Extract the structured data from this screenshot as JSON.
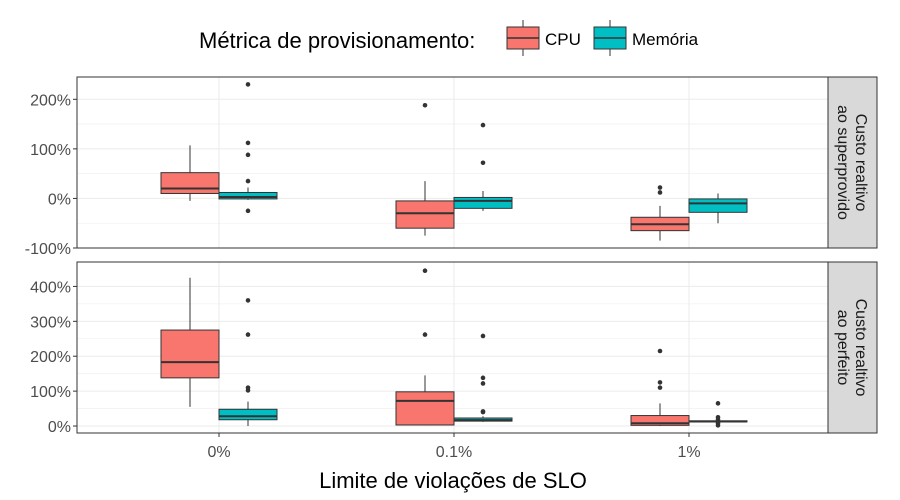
{
  "chart_data": {
    "type": "boxplot",
    "x_title": "Limite de violações de SLO",
    "categories": [
      "0%",
      "0.1%",
      "1%"
    ],
    "legend": {
      "title": "Métrica de provisionamento:",
      "position": "top",
      "entries": [
        {
          "name": "CPU",
          "color": "#F8766D"
        },
        {
          "name": "Memória",
          "color": "#00BFC4"
        }
      ]
    },
    "grid": true,
    "panels": [
      {
        "strip_lines": [
          "Custo realtivo",
          "ao superprovido"
        ],
        "ylim": [
          -100,
          245
        ],
        "yticks": [
          -100,
          0,
          100,
          200
        ],
        "ytick_labels": [
          "-100%",
          "0%",
          "100%",
          "200%"
        ],
        "series": [
          {
            "name": "CPU",
            "boxes": [
              {
                "category": "0%",
                "min": -5,
                "q1": 10,
                "median": 20,
                "q3": 52,
                "max": 107,
                "outliers": []
              },
              {
                "category": "0.1%",
                "min": -75,
                "q1": -60,
                "median": -30,
                "q3": -5,
                "max": 35,
                "outliers": [
                  188
                ]
              },
              {
                "category": "1%",
                "min": -85,
                "q1": -65,
                "median": -52,
                "q3": -38,
                "max": -15,
                "outliers": [
                  12,
                  22
                ]
              }
            ]
          },
          {
            "name": "Memória",
            "boxes": [
              {
                "category": "0%",
                "min": -3,
                "q1": -1,
                "median": 3,
                "q3": 12,
                "max": 22,
                "outliers": [
                  -25,
                  35,
                  88,
                  112,
                  230
                ]
              },
              {
                "category": "0.1%",
                "min": -25,
                "q1": -20,
                "median": -5,
                "q3": 2,
                "max": 15,
                "outliers": [
                  72,
                  148
                ]
              },
              {
                "category": "1%",
                "min": -50,
                "q1": -28,
                "median": -10,
                "q3": -1,
                "max": 10,
                "outliers": []
              }
            ]
          }
        ]
      },
      {
        "strip_lines": [
          "Custo realtivo",
          "ao perfeito"
        ],
        "ylim": [
          -20,
          470
        ],
        "yticks": [
          0,
          100,
          200,
          300,
          400
        ],
        "ytick_labels": [
          "0%",
          "100%",
          "200%",
          "300%",
          "400%"
        ],
        "series": [
          {
            "name": "CPU",
            "boxes": [
              {
                "category": "0%",
                "min": 55,
                "q1": 138,
                "median": 183,
                "q3": 275,
                "max": 425,
                "outliers": []
              },
              {
                "category": "0.1%",
                "min": 2,
                "q1": 3,
                "median": 72,
                "q3": 98,
                "max": 145,
                "outliers": [
                  262,
                  445
                ]
              },
              {
                "category": "1%",
                "min": 0,
                "q1": 2,
                "median": 8,
                "q3": 30,
                "max": 65,
                "outliers": [
                  110,
                  125,
                  215
                ]
              }
            ]
          },
          {
            "name": "Memória",
            "boxes": [
              {
                "category": "0%",
                "min": 0,
                "q1": 18,
                "median": 28,
                "q3": 48,
                "max": 70,
                "outliers": [
                  102,
                  110,
                  262,
                  360
                ]
              },
              {
                "category": "0.1%",
                "min": 12,
                "q1": 14,
                "median": 17,
                "q3": 23,
                "max": 28,
                "outliers": [
                  40,
                  42,
                  122,
                  138,
                  258
                ]
              },
              {
                "category": "1%",
                "min": 12,
                "q1": 12,
                "median": 13,
                "q3": 15,
                "max": 16,
                "outliers": [
                  2,
                  8,
                  18,
                  25,
                  65
                ]
              }
            ]
          }
        ]
      }
    ]
  }
}
